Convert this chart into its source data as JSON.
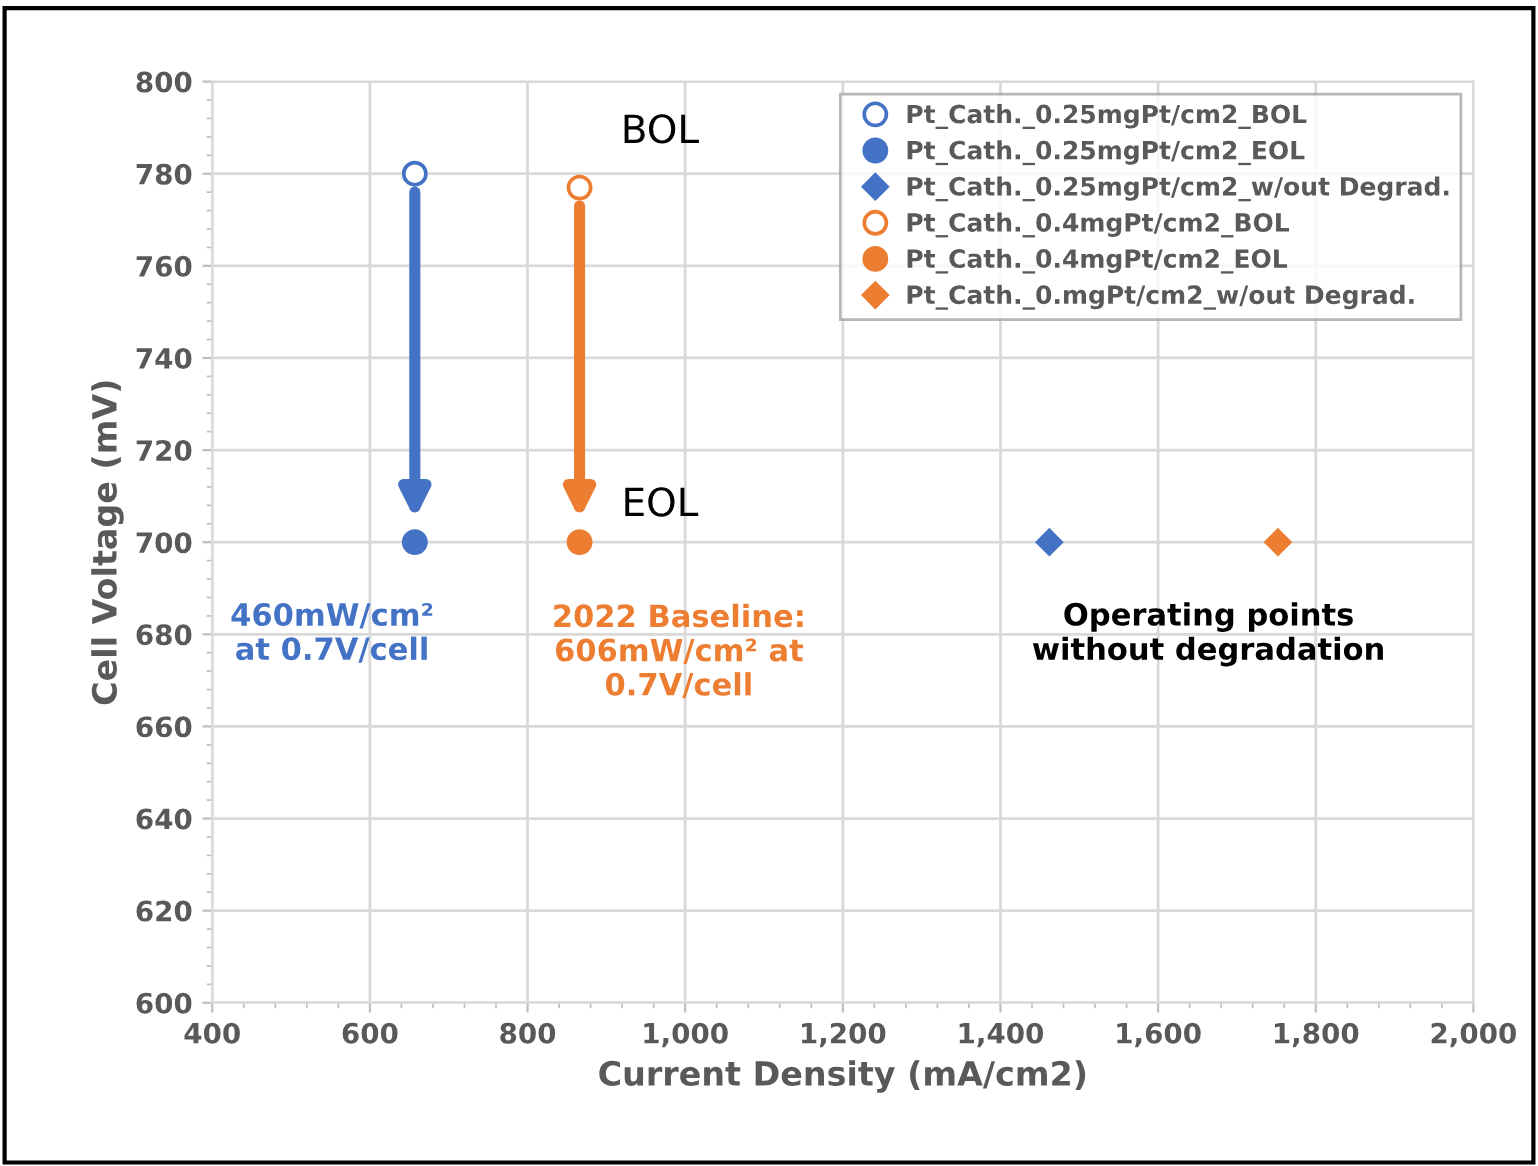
{
  "chart_data": {
    "type": "scatter",
    "xlabel": "Current Density (mA/cm2)",
    "ylabel": "Cell Voltage (mV)",
    "xlim": [
      400,
      2000
    ],
    "ylim": [
      600,
      800
    ],
    "xticks": [
      {
        "value": 400,
        "label": "400"
      },
      {
        "value": 600,
        "label": "600"
      },
      {
        "value": 800,
        "label": "800"
      },
      {
        "value": 1000,
        "label": "1,000"
      },
      {
        "value": 1200,
        "label": "1,200"
      },
      {
        "value": 1400,
        "label": "1,400"
      },
      {
        "value": 1600,
        "label": "1,600"
      },
      {
        "value": 1800,
        "label": "1,800"
      },
      {
        "value": 2000,
        "label": "2,000"
      }
    ],
    "yticks": [
      600,
      620,
      640,
      660,
      680,
      700,
      720,
      740,
      760,
      780,
      800
    ],
    "grid": true,
    "legend": "top right",
    "series": [
      {
        "name": "Pt_Cath._0.25mgPt/cm2_BOL",
        "color": "#4472c4",
        "marker": "circle",
        "x": [
          657
        ],
        "values": [
          780
        ]
      },
      {
        "name": "Pt_Cath._0.25mgPt/cm2_EOL",
        "color": "#4472c4",
        "marker": "circle",
        "x": [
          657
        ],
        "values": [
          700
        ]
      },
      {
        "name": "Pt_Cath._0.25mgPt/cm2_w/out Degrad.",
        "color": "#4472c4",
        "marker": "diamond",
        "x": [
          1462
        ],
        "values": [
          700
        ]
      },
      {
        "name": "Pt_Cath._0.4mgPt/cm2_BOL",
        "color": "#ed7d31",
        "marker": "circle",
        "x": [
          866
        ],
        "values": [
          777
        ]
      },
      {
        "name": "Pt_Cath._0.4mgPt/cm2_EOL",
        "color": "#ed7d31",
        "marker": "circle",
        "x": [
          866
        ],
        "values": [
          700
        ]
      },
      {
        "name": "Pt_Cath._0.mgPt/cm2_w/out Degrad.",
        "color": "#ed7d31",
        "marker": "diamond",
        "x": [
          1752
        ],
        "values": [
          700
        ]
      }
    ],
    "annotations": [
      "BOL",
      "EOL",
      "460mW/cm²\nat 0.7V/cell",
      "2022 Baseline:\n606mW/cm² at\n0.7V/cell",
      "Operating points\nwithout degradation"
    ]
  }
}
